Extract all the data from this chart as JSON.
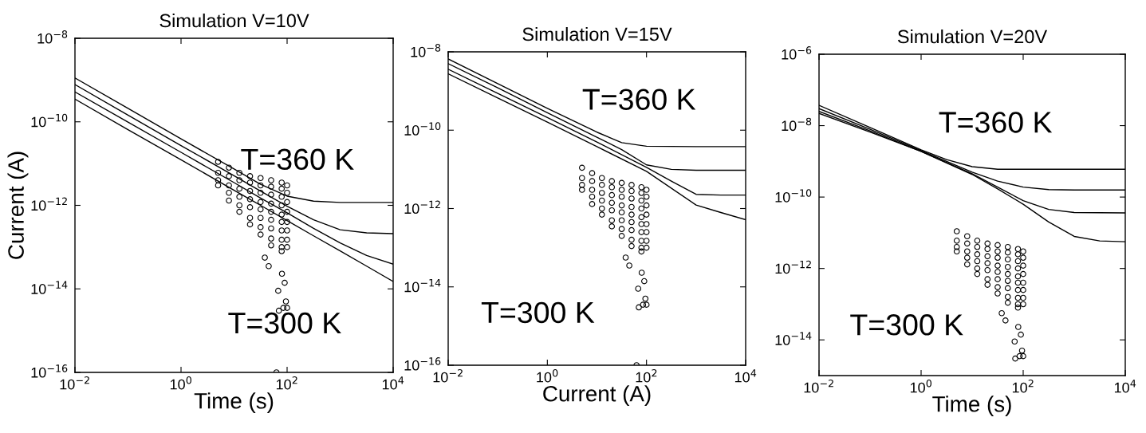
{
  "chart_data": [
    {
      "type": "line",
      "title": "Simulation V=10V",
      "xlabel": "Time (s)",
      "ylabel": "Current (A)",
      "log": "xy",
      "xlim": [
        0.01,
        10000
      ],
      "ylim": [
        1e-16,
        1e-08
      ],
      "xticks": [
        {
          "value": 0.01,
          "label": "10$^{−2}$"
        },
        {
          "value": 1,
          "label": "10$^{0}$"
        },
        {
          "value": 100,
          "label": "10$^{2}$"
        },
        {
          "value": 10000,
          "label": "10$^{4}$"
        }
      ],
      "yticks": [
        {
          "value": 1e-16,
          "label": "10$^{−16}$"
        },
        {
          "value": 1e-14,
          "label": "10$^{−14}$"
        },
        {
          "value": 1e-12,
          "label": "10$^{−12}$"
        },
        {
          "value": 1e-10,
          "label": "10$^{−10}$"
        },
        {
          "value": 1e-08,
          "label": "10$^{−8}$"
        }
      ],
      "annotations": [
        "T=360 K",
        "T=300 K"
      ],
      "series": [
        {
          "color": "#000000",
          "line_style": "solid",
          "marker": "none",
          "x": [
            0.01,
            0.1,
            1,
            10,
            31.6,
            100,
            316,
            1000,
            3160,
            10000
          ],
          "values": [
            1.12e-09,
            2.1e-10,
            3.9e-11,
            7.4e-12,
            3.2e-12,
            1.66e-12,
            1.26e-12,
            1.17e-12,
            1.17e-12,
            1.17e-12
          ]
        },
        {
          "color": "#000000",
          "line_style": "solid",
          "marker": "none",
          "x": [
            0.01,
            0.1,
            1,
            10,
            31.6,
            100,
            316,
            1000,
            3160,
            10000
          ],
          "values": [
            7.8e-10,
            1.45e-10,
            2.7e-11,
            5.1e-12,
            2.2e-12,
            9.5e-13,
            4.5e-13,
            2.6e-13,
            2.2e-13,
            2.1e-13
          ]
        },
        {
          "color": "#000000",
          "line_style": "solid",
          "marker": "none",
          "x": [
            0.01,
            0.1,
            1,
            10,
            31.6,
            100,
            316,
            1000,
            3160,
            10000
          ],
          "values": [
            5.2e-10,
            9.8e-11,
            1.86e-11,
            3.5e-12,
            1.5e-12,
            6.6e-13,
            2.8e-13,
            1.26e-13,
            6.3e-14,
            3.9e-14
          ]
        },
        {
          "color": "#000000",
          "line_style": "solid",
          "marker": "none",
          "x": [
            0.01,
            0.1,
            1,
            10,
            31.6,
            100,
            316,
            1000,
            3160,
            10000
          ],
          "values": [
            3.5e-10,
            6.5e-11,
            1.23e-11,
            2.3e-12,
            1e-12,
            4.3e-13,
            1.86e-13,
            8.1e-14,
            3.5e-14,
            1.5e-14
          ]
        },
        {
          "type": "scatter",
          "color": "#000000",
          "marker": "circle",
          "x": [
            5,
            5,
            5,
            5,
            8,
            8,
            8,
            8,
            8,
            12.6,
            12.6,
            12.6,
            12.6,
            12.6,
            12.6,
            20,
            20,
            20,
            20,
            20,
            20,
            20,
            31.6,
            31.6,
            31.6,
            31.6,
            31.6,
            31.6,
            31.6,
            31.6,
            50,
            50,
            50,
            50,
            50,
            50,
            50,
            50,
            50,
            79,
            79,
            79,
            79,
            79,
            79,
            79,
            79,
            79,
            79,
            100,
            100,
            100,
            100,
            100,
            100,
            100,
            100,
            38,
            45,
            80,
            90,
            68,
            70,
            85,
            100,
            95,
            63
          ],
          "values": [
            1.1e-11,
            6e-12,
            4e-12,
            3e-12,
            8e-12,
            5e-12,
            3e-12,
            2e-12,
            1.3e-12,
            6e-12,
            4e-12,
            2.5e-12,
            1.6e-12,
            1e-12,
            7e-13,
            5e-12,
            3.5e-12,
            2.2e-12,
            1.4e-12,
            9e-13,
            5e-13,
            3.5e-13,
            4.5e-12,
            3e-12,
            2e-12,
            1.2e-12,
            8e-13,
            5e-13,
            3e-13,
            2e-13,
            4e-12,
            2.8e-12,
            1.8e-12,
            1.1e-12,
            7e-13,
            4.5e-13,
            2.8e-13,
            1.6e-13,
            1.1e-13,
            3.5e-12,
            2.5e-12,
            1.6e-12,
            1e-12,
            6e-13,
            4e-13,
            2.5e-13,
            1.5e-13,
            1e-13,
            8e-14,
            3e-12,
            2e-12,
            1.2e-12,
            7e-13,
            4e-13,
            2.5e-13,
            1.5e-13,
            1e-13,
            5.6e-14,
            3.5e-14,
            2.3e-14,
            1.4e-14,
            9e-15,
            3e-15,
            3.5e-15,
            3.5e-15,
            5e-15,
            1e-16
          ]
        }
      ]
    },
    {
      "type": "line",
      "title": "Simulation V=15V",
      "xlabel": "Current (A)",
      "log": "xy",
      "xlim": [
        0.01,
        10000
      ],
      "ylim": [
        1e-16,
        1e-08
      ],
      "xticks": [
        {
          "value": 0.01,
          "label": "10$^{−2}$"
        },
        {
          "value": 1,
          "label": "10$^{0}$"
        },
        {
          "value": 100,
          "label": "10$^{2}$"
        },
        {
          "value": 10000,
          "label": "10$^{4}$"
        }
      ],
      "yticks": [
        {
          "value": 1e-16,
          "label": "10$^{−16}$"
        },
        {
          "value": 1e-14,
          "label": "10$^{−14}$"
        },
        {
          "value": 1e-12,
          "label": "10$^{−12}$"
        },
        {
          "value": 1e-10,
          "label": "10$^{−10}$"
        },
        {
          "value": 1e-08,
          "label": "10$^{−8}$"
        }
      ],
      "annotations": [
        "T=360 K",
        "T=300 K"
      ],
      "series": [
        {
          "color": "#000000",
          "line_style": "solid",
          "marker": "none",
          "x": [
            0.01,
            0.1,
            1,
            10,
            31.6,
            100,
            1000,
            10000
          ],
          "values": [
            6.6e-09,
            1.55e-09,
            3.6e-10,
            8.9e-11,
            4.8e-11,
            3.9e-11,
            3.8e-11,
            3.8e-11
          ]
        },
        {
          "color": "#000000",
          "line_style": "solid",
          "marker": "none",
          "x": [
            0.01,
            0.1,
            1,
            10,
            31.6,
            100,
            316,
            1000,
            10000
          ],
          "values": [
            5e-09,
            1.2e-09,
            2.8e-10,
            6.6e-11,
            3.2e-11,
            1.3e-11,
            1e-11,
            9.5e-12,
            9.5e-12
          ]
        },
        {
          "color": "#000000",
          "line_style": "solid",
          "marker": "none",
          "x": [
            0.01,
            0.1,
            1,
            10,
            100,
            316,
            1000,
            3160,
            10000
          ],
          "values": [
            3.6e-09,
            8.7e-10,
            2.1e-10,
            5e-11,
            1.12e-11,
            5e-12,
            2.3e-12,
            2.2e-12,
            2.2e-12
          ]
        },
        {
          "color": "#000000",
          "line_style": "solid",
          "marker": "none",
          "x": [
            0.01,
            0.1,
            1,
            10,
            100,
            1000,
            3160,
            10000
          ],
          "values": [
            2.75e-09,
            6.6e-10,
            1.6e-10,
            3.8e-11,
            8.9e-12,
            1.23e-12,
            7.9e-13,
            5.2e-13
          ]
        },
        {
          "type": "scatter",
          "color": "#000000",
          "marker": "circle",
          "x": [
            5,
            5,
            5,
            5,
            8,
            8,
            8,
            8,
            8,
            12.6,
            12.6,
            12.6,
            12.6,
            12.6,
            12.6,
            20,
            20,
            20,
            20,
            20,
            20,
            20,
            31.6,
            31.6,
            31.6,
            31.6,
            31.6,
            31.6,
            31.6,
            31.6,
            50,
            50,
            50,
            50,
            50,
            50,
            50,
            50,
            50,
            79,
            79,
            79,
            79,
            79,
            79,
            79,
            79,
            79,
            79,
            100,
            100,
            100,
            100,
            100,
            100,
            100,
            100,
            38,
            45,
            80,
            90,
            68,
            70,
            85,
            100,
            95,
            63
          ],
          "values": [
            1.1e-11,
            6e-12,
            4e-12,
            3e-12,
            8e-12,
            5e-12,
            3e-12,
            2e-12,
            1.3e-12,
            6e-12,
            4e-12,
            2.5e-12,
            1.6e-12,
            1e-12,
            7e-13,
            5e-12,
            3.5e-12,
            2.2e-12,
            1.4e-12,
            9e-13,
            5e-13,
            3.5e-13,
            4.5e-12,
            3e-12,
            2e-12,
            1.2e-12,
            8e-13,
            5e-13,
            3e-13,
            2e-13,
            4e-12,
            2.8e-12,
            1.8e-12,
            1.1e-12,
            7e-13,
            4.5e-13,
            2.8e-13,
            1.6e-13,
            1.1e-13,
            3.5e-12,
            2.5e-12,
            1.6e-12,
            1e-12,
            6e-13,
            4e-13,
            2.5e-13,
            1.5e-13,
            1e-13,
            8e-14,
            3e-12,
            2e-12,
            1.2e-12,
            7e-13,
            4e-13,
            2.5e-13,
            1.5e-13,
            1e-13,
            5.6e-14,
            3.5e-14,
            2.3e-14,
            1.4e-14,
            9e-15,
            3e-15,
            3.5e-15,
            3.5e-15,
            5e-15,
            1e-16
          ]
        }
      ]
    },
    {
      "type": "line",
      "title": "Simulation V=20V",
      "xlabel": "Time (s)",
      "log": "xy",
      "xlim": [
        0.01,
        10000
      ],
      "ylim": [
        1e-15,
        1e-06
      ],
      "xticks": [
        {
          "value": 0.01,
          "label": "10$^{−2}$"
        },
        {
          "value": 1,
          "label": "10$^{0}$"
        },
        {
          "value": 100,
          "label": "10$^{2}$"
        },
        {
          "value": 10000,
          "label": "10$^{4}$"
        }
      ],
      "yticks": [
        {
          "value": 1e-14,
          "label": "10$^{−14}$"
        },
        {
          "value": 1e-12,
          "label": "10$^{−12}$"
        },
        {
          "value": 1e-10,
          "label": "10$^{−10}$"
        },
        {
          "value": 1e-08,
          "label": "10$^{−8}$"
        },
        {
          "value": 1e-06,
          "label": "10$^{−6}$"
        }
      ],
      "annotations": [
        "T=360 K",
        "T=300 K"
      ],
      "series": [
        {
          "color": "#000000",
          "line_style": "solid",
          "marker": "none",
          "x": [
            0.01,
            0.1,
            1,
            3.16,
            10,
            31.6,
            100,
            1000,
            10000
          ],
          "values": [
            3.7e-08,
            8.9e-09,
            2.1e-09,
            1.12e-09,
            7.1e-10,
            6e-10,
            6e-10,
            6e-10,
            6e-10
          ]
        },
        {
          "color": "#000000",
          "line_style": "solid",
          "marker": "none",
          "x": [
            0.01,
            0.1,
            1,
            10,
            31.6,
            100,
            316,
            1000,
            10000
          ],
          "values": [
            3e-08,
            7.9e-09,
            2e-09,
            5e-10,
            2.8e-10,
            1.9e-10,
            1.62e-10,
            1.58e-10,
            1.58e-10
          ]
        },
        {
          "color": "#000000",
          "line_style": "solid",
          "marker": "none",
          "x": [
            0.01,
            0.1,
            1,
            10,
            31.6,
            100,
            316,
            1000,
            10000
          ],
          "values": [
            2.5e-08,
            7.1e-09,
            1.9e-09,
            4.5e-10,
            1.9e-10,
            7.9e-11,
            4.5e-11,
            3.7e-11,
            3.6e-11
          ]
        },
        {
          "color": "#000000",
          "line_style": "solid",
          "marker": "none",
          "x": [
            0.01,
            0.1,
            1,
            10,
            31.6,
            100,
            316,
            1000,
            3160,
            10000
          ],
          "values": [
            2.2e-08,
            6.6e-09,
            1.9e-09,
            4.3e-10,
            1.7e-10,
            6.3e-11,
            2e-11,
            7.9e-12,
            5.9e-12,
            5.6e-12
          ]
        },
        {
          "type": "scatter",
          "color": "#000000",
          "marker": "circle",
          "x": [
            5,
            5,
            5,
            5,
            8,
            8,
            8,
            8,
            8,
            12.6,
            12.6,
            12.6,
            12.6,
            12.6,
            12.6,
            20,
            20,
            20,
            20,
            20,
            20,
            20,
            31.6,
            31.6,
            31.6,
            31.6,
            31.6,
            31.6,
            31.6,
            31.6,
            50,
            50,
            50,
            50,
            50,
            50,
            50,
            50,
            50,
            79,
            79,
            79,
            79,
            79,
            79,
            79,
            79,
            79,
            79,
            100,
            100,
            100,
            100,
            100,
            100,
            100,
            100,
            38,
            45,
            80,
            90,
            68,
            70,
            85,
            100,
            95
          ],
          "values": [
            1.1e-11,
            6e-12,
            4e-12,
            3e-12,
            8e-12,
            5e-12,
            3e-12,
            2e-12,
            1.3e-12,
            6e-12,
            4e-12,
            2.5e-12,
            1.6e-12,
            1e-12,
            7e-13,
            5e-12,
            3.5e-12,
            2.2e-12,
            1.4e-12,
            9e-13,
            5e-13,
            3.5e-13,
            4.5e-12,
            3e-12,
            2e-12,
            1.2e-12,
            8e-13,
            5e-13,
            3e-13,
            2e-13,
            4e-12,
            2.8e-12,
            1.8e-12,
            1.1e-12,
            7e-13,
            4.5e-13,
            2.8e-13,
            1.6e-13,
            1.1e-13,
            3.5e-12,
            2.5e-12,
            1.6e-12,
            1e-12,
            6e-13,
            4e-13,
            2.5e-13,
            1.5e-13,
            1e-13,
            8e-14,
            3e-12,
            2e-12,
            1.2e-12,
            7e-13,
            4e-13,
            2.5e-13,
            1.5e-13,
            1e-13,
            5.6e-14,
            3.5e-14,
            2.3e-14,
            1.4e-14,
            9e-15,
            3e-15,
            3.5e-15,
            3.5e-15,
            5e-15
          ]
        }
      ]
    }
  ]
}
